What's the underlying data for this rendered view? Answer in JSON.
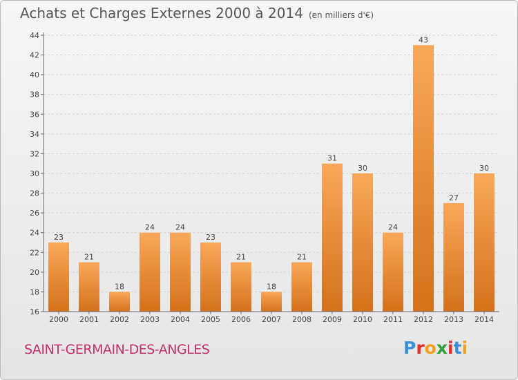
{
  "title": "Achats et Charges Externes 2000 à 2014",
  "unit": "(en milliers d'€)",
  "town": "SAINT-GERMAIN-DES-ANGLES",
  "logo": {
    "text": "Proxiti",
    "letters": [
      {
        "ch": "P",
        "color": "#3a8fd6"
      },
      {
        "ch": "r",
        "color": "#e2322b"
      },
      {
        "ch": "o",
        "color": "#f0a020"
      },
      {
        "ch": "x",
        "color": "#2f9d3c"
      },
      {
        "ch": "i",
        "color": "#e2322b"
      },
      {
        "ch": "t",
        "color": "#3a8fd6"
      },
      {
        "ch": "i",
        "color": "#f0a020"
      }
    ]
  },
  "chart_data": {
    "type": "bar",
    "categories": [
      "2000",
      "2001",
      "2002",
      "2003",
      "2004",
      "2005",
      "2006",
      "2007",
      "2008",
      "2009",
      "2010",
      "2011",
      "2012",
      "2013",
      "2014"
    ],
    "values": [
      23,
      21,
      18,
      24,
      24,
      23,
      21,
      18,
      21,
      31,
      30,
      24,
      43,
      27,
      30
    ],
    "ylim": [
      16,
      44
    ],
    "yticks": [
      16,
      18,
      20,
      22,
      24,
      26,
      28,
      30,
      32,
      34,
      36,
      38,
      40,
      42,
      44
    ],
    "grid": true,
    "bar_color_light": "#f8a85a",
    "bar_color_dark": "#d4711a"
  }
}
